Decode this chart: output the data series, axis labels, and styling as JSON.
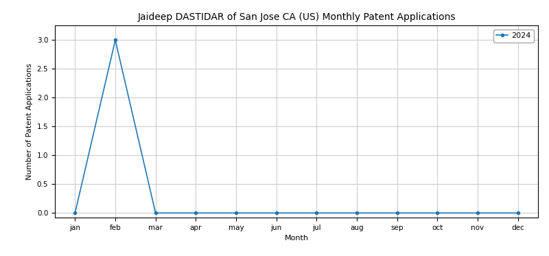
{
  "title": "Jaideep DASTIDAR of San Jose CA (US) Monthly Patent Applications",
  "xlabel": "Month",
  "ylabel": "Number of Patent Applications",
  "legend_label": "2024",
  "months": [
    "jan",
    "feb",
    "mar",
    "apr",
    "may",
    "jun",
    "jul",
    "aug",
    "sep",
    "oct",
    "nov",
    "dec"
  ],
  "values": [
    0,
    3,
    0,
    0,
    0,
    0,
    0,
    0,
    0,
    0,
    0,
    0
  ],
  "line_color": "#1f77b4",
  "marker": "o",
  "markersize": 3,
  "linewidth": 1.2,
  "ylim": [
    -0.08,
    3.25
  ],
  "title_fontsize": 10,
  "axis_label_fontsize": 8,
  "tick_fontsize": 7.5,
  "legend_fontsize": 8,
  "grid_color": "#cccccc",
  "background_color": "#ffffff"
}
